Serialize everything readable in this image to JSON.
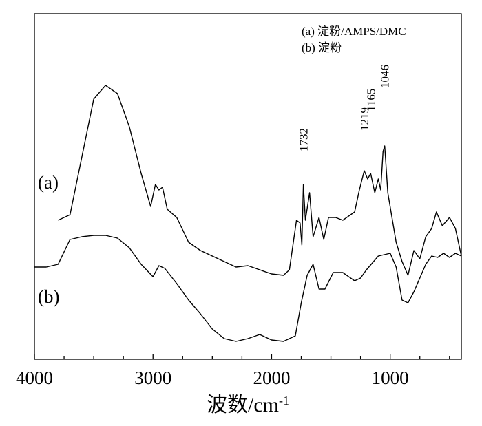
{
  "chart_data": {
    "type": "line",
    "title": "",
    "xlabel": "波数/cm",
    "xlabel_sup": "-1",
    "ylabel": "",
    "xlim": [
      4000,
      400
    ],
    "x_ticks": [
      {
        "value": 4000,
        "label": "4000"
      },
      {
        "value": 3000,
        "label": "3000"
      },
      {
        "value": 2000,
        "label": "2000"
      },
      {
        "value": 1000,
        "label": "1000"
      }
    ],
    "legend": {
      "placement": "top-right",
      "entries": [
        "(a) 淀粉/AMPS/DMC",
        "(b) 淀粉"
      ]
    },
    "series": [
      {
        "name": "(a) 淀粉/AMPS/DMC",
        "tag": "(a)",
        "points": [
          [
            3800,
            4.5
          ],
          [
            3700,
            4.7
          ],
          [
            3600,
            6.8
          ],
          [
            3500,
            8.9
          ],
          [
            3400,
            9.4
          ],
          [
            3300,
            9.1
          ],
          [
            3200,
            7.9
          ],
          [
            3100,
            6.2
          ],
          [
            3020,
            5.0
          ],
          [
            2980,
            5.8
          ],
          [
            2950,
            5.6
          ],
          [
            2920,
            5.7
          ],
          [
            2880,
            4.9
          ],
          [
            2800,
            4.6
          ],
          [
            2700,
            3.7
          ],
          [
            2600,
            3.4
          ],
          [
            2500,
            3.2
          ],
          [
            2400,
            3.0
          ],
          [
            2300,
            2.8
          ],
          [
            2200,
            2.85
          ],
          [
            2100,
            2.7
          ],
          [
            2000,
            2.55
          ],
          [
            1900,
            2.5
          ],
          [
            1850,
            2.7
          ],
          [
            1790,
            4.5
          ],
          [
            1760,
            4.4
          ],
          [
            1745,
            3.6
          ],
          [
            1732,
            5.8
          ],
          [
            1715,
            4.5
          ],
          [
            1680,
            5.5
          ],
          [
            1650,
            3.9
          ],
          [
            1600,
            4.6
          ],
          [
            1560,
            3.8
          ],
          [
            1520,
            4.6
          ],
          [
            1460,
            4.6
          ],
          [
            1400,
            4.5
          ],
          [
            1300,
            4.8
          ],
          [
            1260,
            5.6
          ],
          [
            1219,
            6.3
          ],
          [
            1190,
            6.0
          ],
          [
            1165,
            6.2
          ],
          [
            1130,
            5.5
          ],
          [
            1100,
            6.0
          ],
          [
            1080,
            5.6
          ],
          [
            1060,
            7.0
          ],
          [
            1046,
            7.2
          ],
          [
            1020,
            5.5
          ],
          [
            950,
            3.7
          ],
          [
            900,
            3.0
          ],
          [
            850,
            2.5
          ],
          [
            800,
            3.4
          ],
          [
            750,
            3.1
          ],
          [
            700,
            3.9
          ],
          [
            650,
            4.2
          ],
          [
            610,
            4.8
          ],
          [
            560,
            4.3
          ],
          [
            500,
            4.6
          ],
          [
            450,
            4.2
          ],
          [
            400,
            3.2
          ]
        ]
      },
      {
        "name": "(b) 淀粉",
        "tag": "(b)",
        "points": [
          [
            4000,
            2.8
          ],
          [
            3900,
            2.8
          ],
          [
            3800,
            2.9
          ],
          [
            3700,
            3.8
          ],
          [
            3600,
            3.9
          ],
          [
            3500,
            3.95
          ],
          [
            3400,
            3.95
          ],
          [
            3300,
            3.85
          ],
          [
            3200,
            3.5
          ],
          [
            3100,
            2.9
          ],
          [
            3000,
            2.45
          ],
          [
            2950,
            2.85
          ],
          [
            2900,
            2.75
          ],
          [
            2800,
            2.2
          ],
          [
            2700,
            1.6
          ],
          [
            2600,
            1.1
          ],
          [
            2500,
            0.55
          ],
          [
            2400,
            0.2
          ],
          [
            2300,
            0.1
          ],
          [
            2200,
            0.2
          ],
          [
            2100,
            0.35
          ],
          [
            2000,
            0.15
          ],
          [
            1900,
            0.1
          ],
          [
            1800,
            0.3
          ],
          [
            1750,
            1.5
          ],
          [
            1700,
            2.5
          ],
          [
            1650,
            2.9
          ],
          [
            1600,
            2.0
          ],
          [
            1550,
            2.0
          ],
          [
            1480,
            2.6
          ],
          [
            1400,
            2.6
          ],
          [
            1300,
            2.3
          ],
          [
            1250,
            2.4
          ],
          [
            1200,
            2.7
          ],
          [
            1100,
            3.2
          ],
          [
            1000,
            3.3
          ],
          [
            950,
            2.8
          ],
          [
            900,
            1.6
          ],
          [
            850,
            1.5
          ],
          [
            800,
            1.9
          ],
          [
            750,
            2.4
          ],
          [
            700,
            2.9
          ],
          [
            650,
            3.2
          ],
          [
            600,
            3.15
          ],
          [
            550,
            3.3
          ],
          [
            500,
            3.15
          ],
          [
            450,
            3.3
          ],
          [
            400,
            3.2
          ]
        ]
      }
    ],
    "annotations": [
      {
        "text": "1732",
        "x": 1732
      },
      {
        "text": "1219",
        "x": 1219
      },
      {
        "text": "1165",
        "x": 1165
      },
      {
        "text": "1046",
        "x": 1046
      }
    ]
  }
}
